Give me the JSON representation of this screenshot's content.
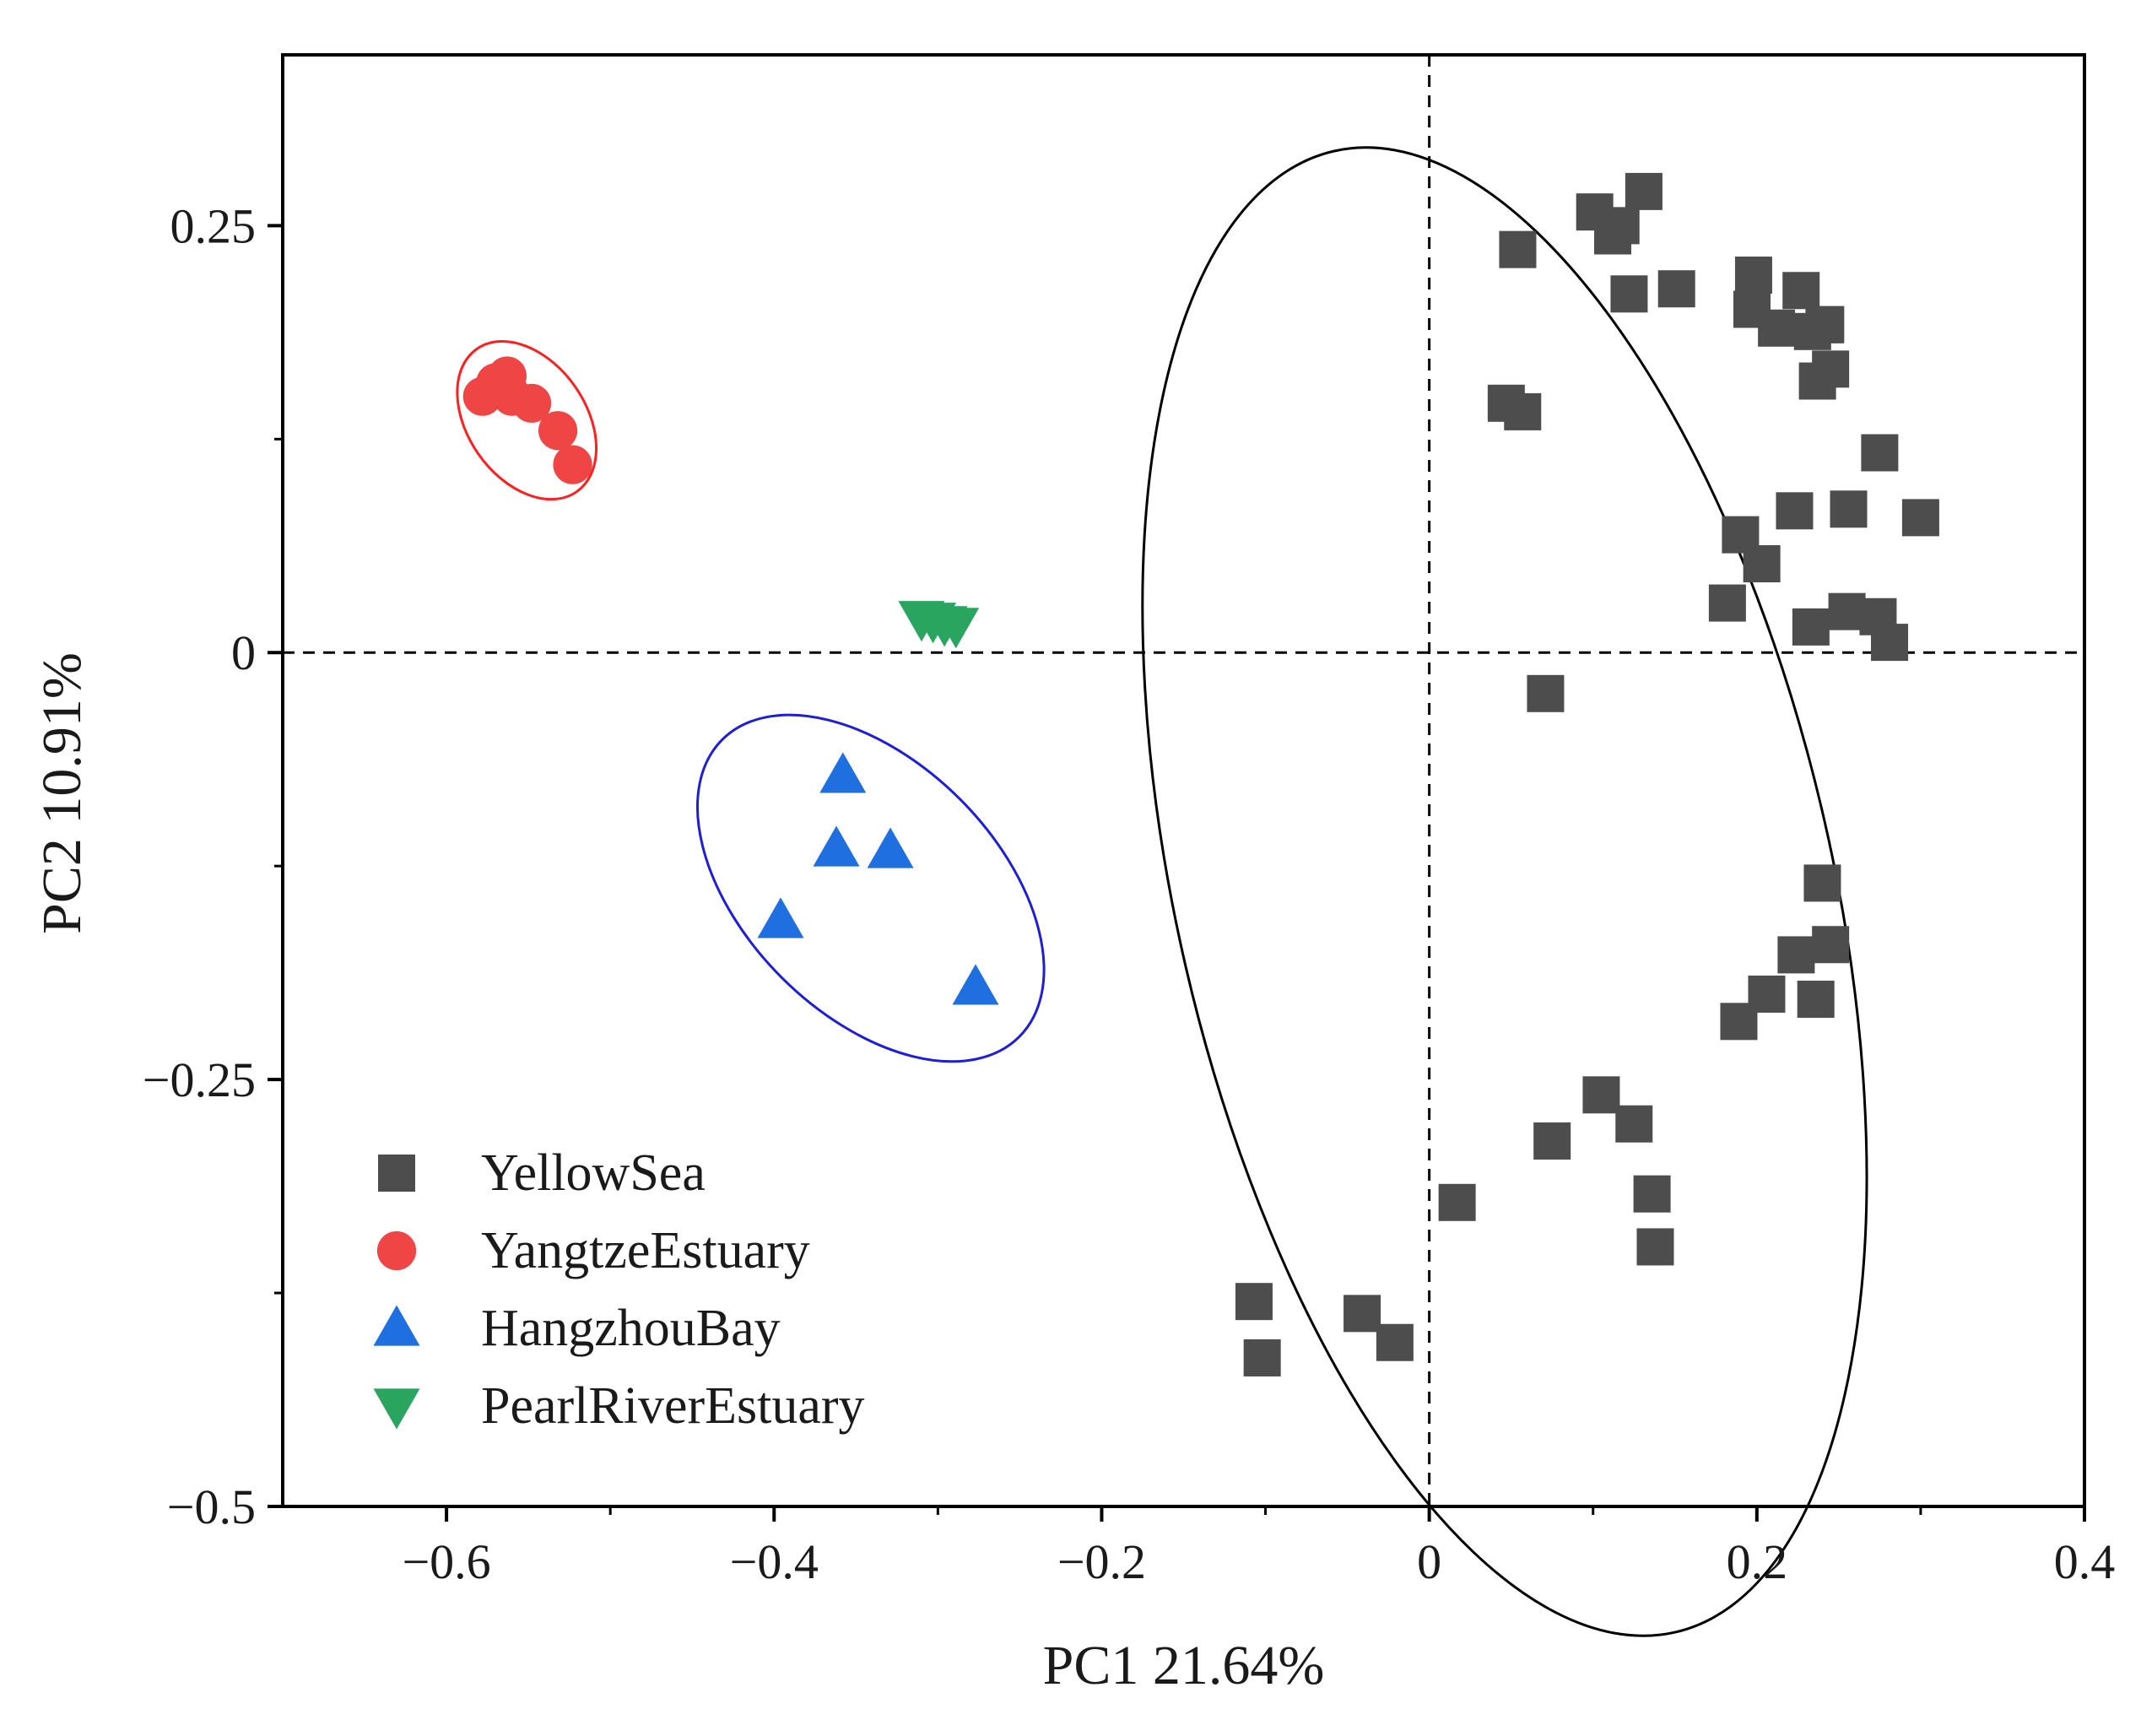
{
  "chart_data": {
    "type": "scatter",
    "title": "",
    "xlabel": "PC1 21.64%",
    "ylabel": "PC2 10.91%",
    "xlim": [
      -0.7,
      0.4
    ],
    "ylim": [
      -0.5,
      0.35
    ],
    "x_ticks": [
      -0.6,
      -0.4,
      -0.2,
      0,
      0.2,
      0.4
    ],
    "x_tick_labels": [
      "−0.6",
      "−0.4",
      "−0.2",
      "0",
      "0.2",
      "0.4"
    ],
    "y_ticks": [
      -0.5,
      -0.25,
      0,
      0.25
    ],
    "y_tick_labels": [
      "−0.5",
      "−0.25",
      "0",
      "0.25"
    ],
    "reference_lines": {
      "x": 0,
      "y": 0,
      "style": "dashed"
    },
    "legend_position": "bottom-left",
    "series": [
      {
        "name": "YellowSea",
        "marker": "square",
        "color": "#4d4d4d",
        "x": [
          0.054,
          0.101,
          0.112,
          0.117,
          0.131,
          0.122,
          0.151,
          0.198,
          0.227,
          0.197,
          0.234,
          0.241,
          0.245,
          0.212,
          0.237,
          0.242,
          0.047,
          0.057,
          0.275,
          0.19,
          0.223,
          0.256,
          0.3,
          0.203,
          0.182,
          0.255,
          0.233,
          0.274,
          0.281,
          0.071,
          0.24,
          0.224,
          0.245,
          0.206,
          0.236,
          0.189,
          0.105,
          0.125,
          0.075,
          0.136,
          0.017,
          0.138,
          -0.107,
          -0.102,
          -0.041,
          -0.021
        ],
        "y": [
          0.236,
          0.258,
          0.244,
          0.25,
          0.27,
          0.21,
          0.213,
          0.221,
          0.212,
          0.201,
          0.188,
          0.192,
          0.166,
          0.19,
          0.159,
          0.192,
          0.146,
          0.141,
          0.117,
          0.069,
          0.083,
          0.084,
          0.079,
          0.052,
          0.029,
          0.024,
          0.015,
          0.021,
          0.006,
          -0.024,
          -0.135,
          -0.177,
          -0.171,
          -0.2,
          -0.203,
          -0.216,
          -0.259,
          -0.276,
          -0.286,
          -0.317,
          -0.322,
          -0.348,
          -0.38,
          -0.413,
          -0.387,
          -0.404
        ]
      },
      {
        "name": "YangtzeEstuary",
        "marker": "circle",
        "color": "#f04545",
        "x": [
          -0.578,
          -0.57,
          -0.563,
          -0.56,
          -0.548,
          -0.532,
          -0.523
        ],
        "y": [
          0.15,
          0.158,
          0.162,
          0.15,
          0.146,
          0.13,
          0.11
        ]
      },
      {
        "name": "HangzhouBay",
        "marker": "triangle-up",
        "color": "#1f6fe0",
        "x": [
          -0.358,
          -0.362,
          -0.329,
          -0.396,
          -0.277
        ],
        "y": [
          -0.072,
          -0.115,
          -0.116,
          -0.157,
          -0.196
        ]
      },
      {
        "name": "PearlRiverEstuary",
        "marker": "triangle-down",
        "color": "#2aa560",
        "x": [
          -0.31,
          -0.303,
          -0.296,
          -0.289
        ],
        "y": [
          0.02,
          0.019,
          0.017,
          0.016
        ]
      }
    ],
    "ellipses": [
      {
        "group": "YellowSea",
        "cx": 0.046,
        "cy": -0.14,
        "rx": 0.2,
        "ry": 0.445,
        "angle_deg": -13,
        "color": "#000000"
      },
      {
        "group": "YangtzeEstuary",
        "cx": -0.551,
        "cy": 0.136,
        "rx": 0.036,
        "ry": 0.051,
        "angle_deg": -35,
        "color": "#ff2020"
      },
      {
        "group": "HangzhouBay",
        "cx": -0.341,
        "cy": -0.138,
        "rx": 0.077,
        "ry": 0.123,
        "angle_deg": -45,
        "color": "#1e1ed8"
      }
    ]
  }
}
